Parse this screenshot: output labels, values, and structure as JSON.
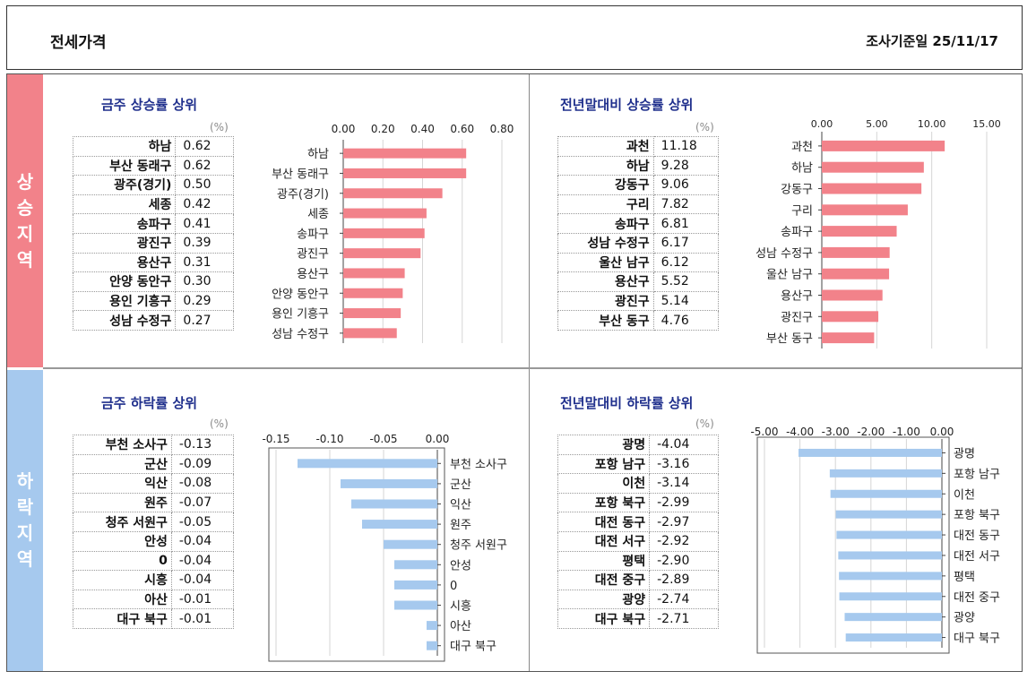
{
  "header": {
    "title": "전세가격",
    "date_label": "조사기준일 25/11/17"
  },
  "sections": {
    "rise": "상승지역",
    "fall": "하락지역"
  },
  "colors": {
    "rise_bar": "#f2828a",
    "fall_bar": "#a6c9ee",
    "title_text": "#1f2f8c"
  },
  "chart_data": [
    {
      "id": "weekly-rise",
      "type": "bar",
      "orientation": "horizontal",
      "title": "금주 상승률 상위",
      "unit": "(%)",
      "categories": [
        "하남",
        "부산 동래구",
        "광주(경기)",
        "세종",
        "송파구",
        "광진구",
        "용산구",
        "안양 동안구",
        "용인 기흥구",
        "성남 수정구"
      ],
      "values": [
        0.62,
        0.62,
        0.5,
        0.42,
        0.41,
        0.39,
        0.31,
        0.3,
        0.29,
        0.27
      ],
      "value_labels": [
        "0.62",
        "0.62",
        "0.50",
        "0.42",
        "0.41",
        "0.39",
        "0.31",
        "0.30",
        "0.29",
        "0.27"
      ],
      "xlim": [
        0,
        0.8
      ],
      "ticks": [
        0,
        0.2,
        0.4,
        0.6,
        0.8
      ],
      "tick_labels": [
        "0.00",
        "0.20",
        "0.40",
        "0.60",
        "0.80"
      ],
      "axis_position": "top",
      "category_side": "left",
      "color": "#f2828a"
    },
    {
      "id": "ytd-rise",
      "type": "bar",
      "orientation": "horizontal",
      "title": "전년말대비 상승률 상위",
      "unit": "(%)",
      "categories": [
        "과천",
        "하남",
        "강동구",
        "구리",
        "송파구",
        "성남 수정구",
        "울산 남구",
        "용산구",
        "광진구",
        "부산 동구"
      ],
      "values": [
        11.18,
        9.28,
        9.06,
        7.82,
        6.81,
        6.17,
        6.12,
        5.52,
        5.14,
        4.76
      ],
      "value_labels": [
        "11.18",
        "9.28",
        "9.06",
        "7.82",
        "6.81",
        "6.17",
        "6.12",
        "5.52",
        "5.14",
        "4.76"
      ],
      "xlim": [
        0,
        15
      ],
      "ticks": [
        0,
        5,
        10,
        15
      ],
      "tick_labels": [
        "0.00",
        "5.00",
        "10.00",
        "15.00"
      ],
      "axis_position": "top",
      "category_side": "left",
      "color": "#f2828a"
    },
    {
      "id": "weekly-fall",
      "type": "bar",
      "orientation": "horizontal",
      "title": "금주 하락률 상위",
      "unit": "(%)",
      "categories": [
        "부천 소사구",
        "군산",
        "익산",
        "원주",
        "청주 서원구",
        "안성",
        "0",
        "시흥",
        "아산",
        "대구 북구"
      ],
      "values": [
        -0.13,
        -0.09,
        -0.08,
        -0.07,
        -0.05,
        -0.04,
        -0.04,
        -0.04,
        -0.01,
        -0.01
      ],
      "value_labels": [
        "-0.13",
        "-0.09",
        "-0.08",
        "-0.07",
        "-0.05",
        "-0.04",
        "-0.04",
        "-0.04",
        "-0.01",
        "-0.01"
      ],
      "xlim": [
        -0.15,
        0
      ],
      "ticks": [
        -0.15,
        -0.1,
        -0.05,
        0
      ],
      "tick_labels": [
        "-0.15",
        "-0.10",
        "-0.05",
        "0.00"
      ],
      "axis_position": "top",
      "category_side": "right",
      "color": "#a6c9ee"
    },
    {
      "id": "ytd-fall",
      "type": "bar",
      "orientation": "horizontal",
      "title": "전년말대비 하락률 상위",
      "unit": "(%)",
      "categories": [
        "광명",
        "포항 남구",
        "이천",
        "포항 북구",
        "대전 동구",
        "대전 서구",
        "평택",
        "대전 중구",
        "광양",
        "대구 북구"
      ],
      "values": [
        -4.04,
        -3.16,
        -3.14,
        -2.99,
        -2.97,
        -2.92,
        -2.9,
        -2.89,
        -2.74,
        -2.71
      ],
      "value_labels": [
        "-4.04",
        "-3.16",
        "-3.14",
        "-2.99",
        "-2.97",
        "-2.92",
        "-2.90",
        "-2.89",
        "-2.74",
        "-2.71"
      ],
      "xlim": [
        -5,
        0
      ],
      "ticks": [
        -5,
        -4,
        -3,
        -2,
        -1,
        0
      ],
      "tick_labels": [
        "-5.00",
        "-4.00",
        "-3.00",
        "-2.00",
        "-1.00",
        "0.00"
      ],
      "axis_position": "top",
      "category_side": "right",
      "color": "#a6c9ee"
    }
  ]
}
